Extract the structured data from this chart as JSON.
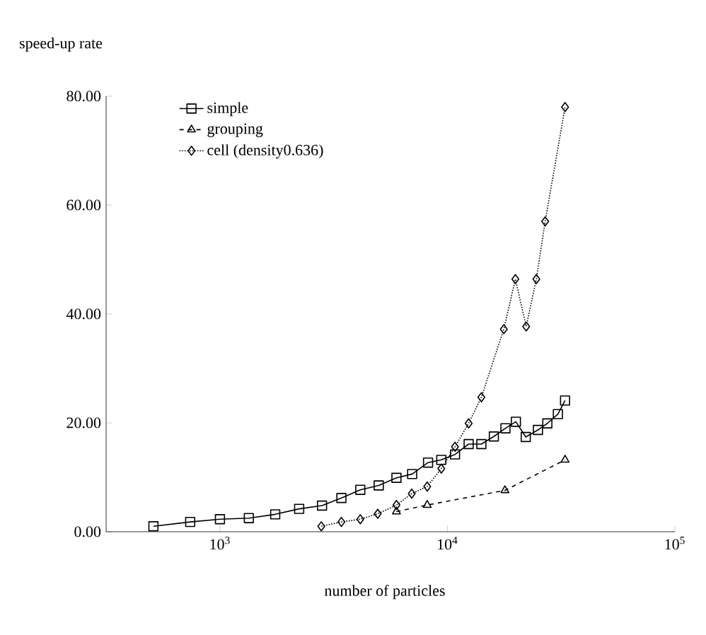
{
  "chart_data": {
    "type": "line",
    "xlabel": "number of particles",
    "ylabel": "speed-up rate",
    "log": "x",
    "xlim": [
      316,
      100000
    ],
    "ylim": [
      0,
      80
    ],
    "xticks": [
      {
        "value": 1000,
        "label": "10$^{3}$"
      },
      {
        "value": 10000,
        "label": "10$^{4}$"
      },
      {
        "value": 100000,
        "label": "10$^{5}$"
      }
    ],
    "yticks": [
      {
        "value": 0,
        "label": "0.00"
      },
      {
        "value": 20,
        "label": "20.00"
      },
      {
        "value": 40,
        "label": "40.00"
      },
      {
        "value": 60,
        "label": "60.00"
      },
      {
        "value": 80,
        "label": "80.00"
      }
    ],
    "grid": false,
    "legend": "top left",
    "series": [
      {
        "name": "simple",
        "color": "#000000",
        "marker": "square",
        "line_style": "solid",
        "x": [
          510,
          740,
          1000,
          1340,
          1750,
          2230,
          2810,
          3420,
          4140,
          4990,
          5970,
          7000,
          8220,
          9400,
          10800,
          12400,
          14100,
          16000,
          18000,
          20000,
          22100,
          25000,
          27500,
          30600,
          32900
        ],
        "values": [
          1.0,
          1.8,
          2.3,
          2.5,
          3.2,
          4.2,
          4.8,
          6.2,
          7.7,
          8.5,
          9.9,
          10.6,
          12.7,
          13.2,
          14.2,
          16.1,
          16.1,
          17.5,
          19.0,
          20.2,
          17.4,
          18.7,
          19.9,
          21.6,
          24.1
        ]
      },
      {
        "name": "grouping",
        "color": "#000000",
        "marker": "triangle",
        "line_style": "dashed",
        "x": [
          5970,
          8150,
          17900,
          32900
        ],
        "values": [
          3.7,
          4.9,
          7.6,
          13.2
        ]
      },
      {
        "name": "cell (density0.636)",
        "color": "#000000",
        "marker": "diamond",
        "line_style": "dotted",
        "x": [
          2790,
          3420,
          4140,
          4940,
          5970,
          6970,
          8150,
          9400,
          10800,
          12400,
          14100,
          17700,
          19900,
          22200,
          24600,
          26900,
          32900
        ],
        "values": [
          1.0,
          1.8,
          2.3,
          3.3,
          4.9,
          7.0,
          8.3,
          11.6,
          15.6,
          19.9,
          24.7,
          37.2,
          46.4,
          37.7,
          46.4,
          57.0,
          78.0
        ]
      }
    ]
  }
}
